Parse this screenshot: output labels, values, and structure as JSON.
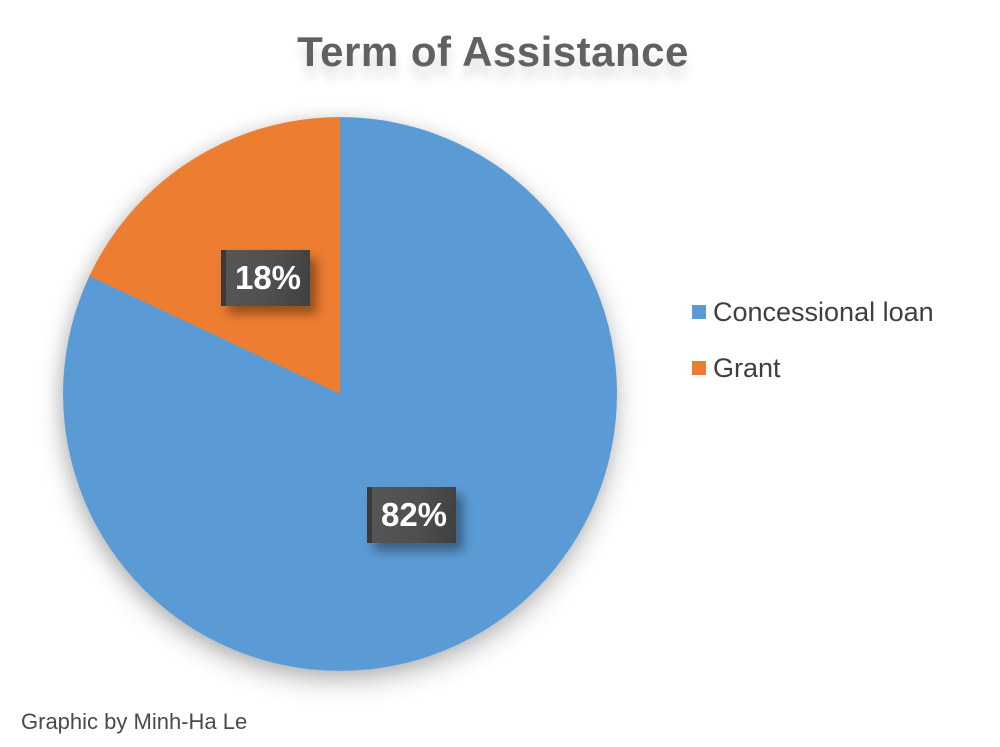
{
  "title": "Term of Assistance",
  "footer": {
    "credit": "Graphic by Minh-Ha Le"
  },
  "colors": {
    "slice_blue": "#5B9BD5",
    "slice_orange": "#ED7D31",
    "title_text": "#616161",
    "legend_text": "#3F3F3F",
    "label_box": "#4F4F4F",
    "label_text": "#FFFFFF",
    "background": "#FFFFFF"
  },
  "chart_data": {
    "type": "pie",
    "title": "Term of Assistance",
    "categories": [
      "Concessional loan",
      "Grant"
    ],
    "values": [
      82,
      18
    ],
    "labels": [
      "82%",
      "18%"
    ],
    "colors": [
      "#5B9BD5",
      "#ED7D31"
    ],
    "start_angle_deg": 0,
    "direction": "clockwise",
    "legend_position": "right",
    "data_label_style": "dark-box-white-bold-text-with-shadow"
  }
}
